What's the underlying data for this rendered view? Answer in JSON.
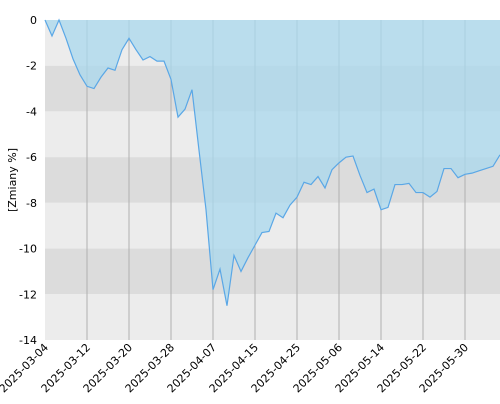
{
  "chart_data": {
    "type": "area",
    "y_label": "[Zmiany %]",
    "categories": [
      "2025-03-04",
      null,
      null,
      null,
      null,
      null,
      "2025-03-12",
      null,
      null,
      null,
      null,
      null,
      "2025-03-20",
      null,
      null,
      null,
      null,
      null,
      "2025-03-28",
      null,
      null,
      null,
      null,
      null,
      "2025-04-07",
      null,
      null,
      null,
      null,
      null,
      "2025-04-15",
      null,
      null,
      null,
      null,
      null,
      "2025-04-25",
      null,
      null,
      null,
      null,
      null,
      "2025-05-06",
      null,
      null,
      null,
      null,
      null,
      "2025-05-14",
      null,
      null,
      null,
      null,
      null,
      "2025-05-22",
      null,
      null,
      null,
      null,
      null,
      "2025-05-30",
      null,
      null,
      null,
      null,
      null
    ],
    "values": [
      0,
      -0.7,
      0,
      -0.8,
      -1.7,
      -2.4,
      -2.9,
      -3.0,
      -2.5,
      -2.1,
      -2.2,
      -1.3,
      -0.8,
      -1.3,
      -1.75,
      -1.6,
      -1.8,
      -1.8,
      -2.6,
      -4.25,
      -3.9,
      -3.05,
      -5.7,
      -8.3,
      -11.8,
      -10.9,
      -12.5,
      -10.3,
      -11.0,
      -10.4,
      -9.85,
      -9.3,
      -9.25,
      -8.45,
      -8.65,
      -8.1,
      -7.75,
      -7.1,
      -7.2,
      -6.85,
      -7.35,
      -6.55,
      -6.25,
      -6.0,
      -5.95,
      -6.8,
      -7.55,
      -7.4,
      -8.3,
      -8.2,
      -7.2,
      -7.2,
      -7.15,
      -7.55,
      -7.55,
      -7.75,
      -7.5,
      -6.5,
      -6.5,
      -6.9,
      -6.75,
      -6.7,
      -6.6,
      -6.5,
      -6.4,
      -5.9
    ],
    "color": "#5aa7e6",
    "fill": "#a9d8ee",
    "ylim": [
      -14,
      0
    ],
    "yticks": [
      0,
      -2,
      -4,
      -6,
      -8,
      -10,
      -12,
      -14
    ],
    "band_colors": [
      "#ececec",
      "#dcdcdc"
    ],
    "grid": true
  }
}
